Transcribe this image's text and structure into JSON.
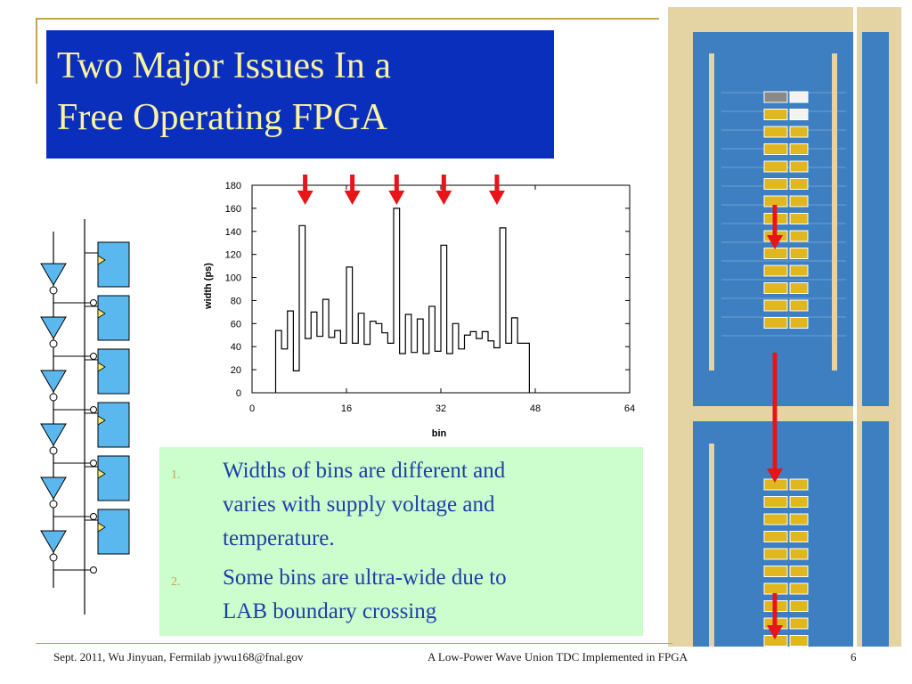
{
  "slide": {
    "title_lines": [
      "Two Major Issues In a",
      "Free Operating FPGA"
    ],
    "page_number": "6",
    "footer_left": "Sept. 2011, Wu Jinyuan, Fermilab jywu168@fnal.gov",
    "footer_center": "A Low-Power Wave Union TDC Implemented in FPGA"
  },
  "notes": [
    {
      "num": "1.",
      "lines": [
        "Widths of bins are different and",
        "varies with supply voltage and",
        "temperature."
      ]
    },
    {
      "num": "2.",
      "lines": [
        "Some bins are ultra-wide due to",
        "LAB boundary crossing"
      ]
    }
  ],
  "colors": {
    "title_bg": "#0b2fbd",
    "title_text": "#f8f2a2",
    "note_bg": "#ccfdcc",
    "note_text": "#1f3ea9",
    "accent_gold": "#c9a448",
    "arrow_red": "#e8141a",
    "cell_blue": "#5bb8ee",
    "fpga_blue": "#3d7fc0",
    "fpga_frame": "#e4d3a3",
    "fpga_cell": "#e0b71f"
  },
  "chart_data": {
    "type": "line",
    "style": "step",
    "xlabel": "bin",
    "ylabel": "width (ps)",
    "xlim": [
      0,
      64
    ],
    "ylim": [
      0,
      180
    ],
    "x_ticks": [
      "0",
      "16",
      "32",
      "48",
      "64"
    ],
    "y_ticks": [
      "0",
      "20",
      "40",
      "60",
      "80",
      "100",
      "120",
      "140",
      "160",
      "180"
    ],
    "bins_start": 4,
    "values": [
      54,
      38,
      71,
      19,
      145,
      47,
      70,
      49,
      81,
      48,
      54,
      43,
      109,
      43,
      69,
      42,
      62,
      60,
      52,
      43,
      160,
      34,
      68,
      35,
      64,
      34,
      75,
      36,
      128,
      34,
      60,
      38,
      50,
      53,
      47,
      53,
      45,
      39,
      143,
      43,
      65,
      43,
      43
    ],
    "arrows_at_bins": [
      9,
      17,
      24.5,
      32.5,
      41.5
    ],
    "grid": false
  },
  "fpga_arrows": 3
}
